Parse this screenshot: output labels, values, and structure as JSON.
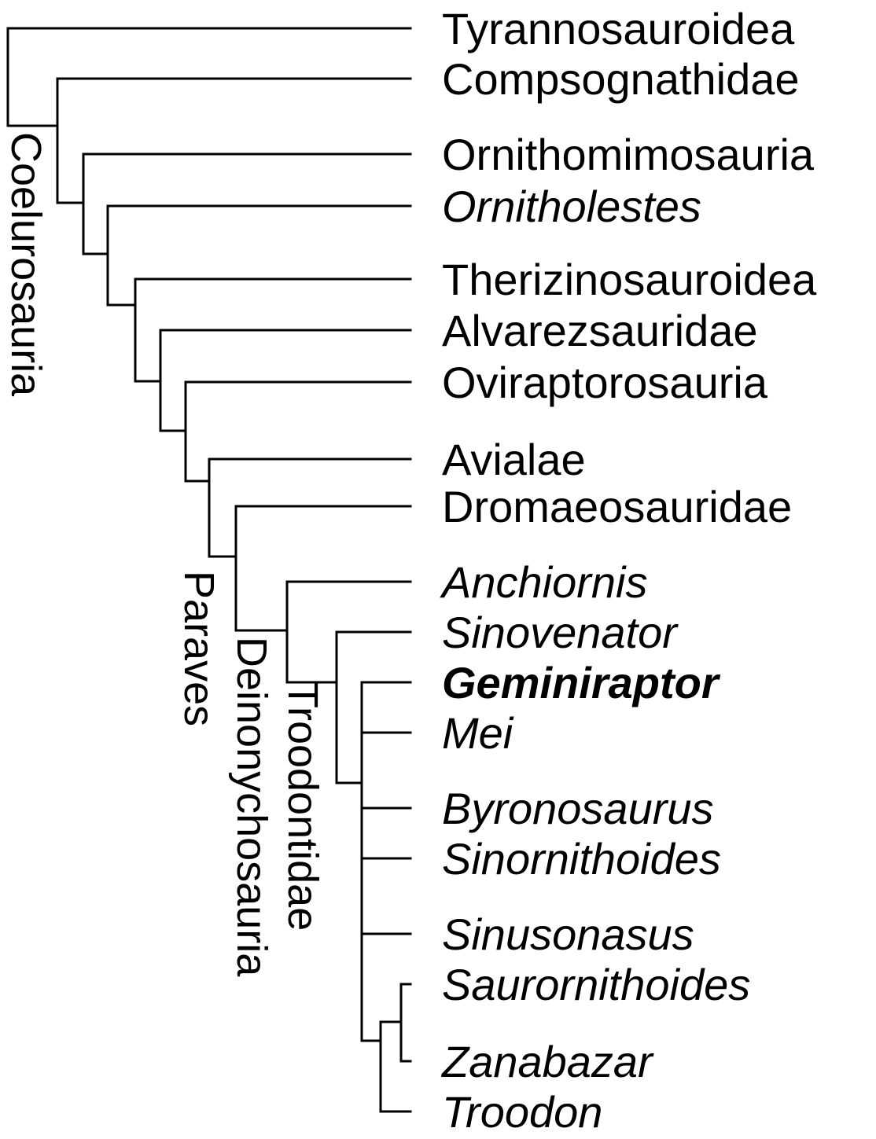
{
  "diagram": {
    "type": "cladogram",
    "taxa": [
      {
        "name": "Tyrannosauroidea",
        "italic": false,
        "bold": false
      },
      {
        "name": "Compsognathidae",
        "italic": false,
        "bold": false
      },
      {
        "name": "Ornithomimosauria",
        "italic": false,
        "bold": false
      },
      {
        "name": "Ornitholestes",
        "italic": true,
        "bold": false
      },
      {
        "name": "Therizinosauroidea",
        "italic": false,
        "bold": false
      },
      {
        "name": "Alvarezsauridae",
        "italic": false,
        "bold": false
      },
      {
        "name": "Oviraptorosauria",
        "italic": false,
        "bold": false
      },
      {
        "name": "Avialae",
        "italic": false,
        "bold": false
      },
      {
        "name": "Dromaeosauridae",
        "italic": false,
        "bold": false
      },
      {
        "name": "Anchiornis",
        "italic": true,
        "bold": false
      },
      {
        "name": "Sinovenator",
        "italic": true,
        "bold": false
      },
      {
        "name": "Geminiraptor",
        "italic": true,
        "bold": true
      },
      {
        "name": "Mei",
        "italic": true,
        "bold": false
      },
      {
        "name": "Byronosaurus",
        "italic": true,
        "bold": false
      },
      {
        "name": "Sinornithoides",
        "italic": true,
        "bold": false
      },
      {
        "name": "Sinusonasus",
        "italic": true,
        "bold": false
      },
      {
        "name": "Saurornithoides",
        "italic": true,
        "bold": false
      },
      {
        "name": "Zanabazar",
        "italic": true,
        "bold": false
      },
      {
        "name": "Troodon",
        "italic": true,
        "bold": false
      }
    ],
    "clades": [
      {
        "name": "Coelurosauria"
      },
      {
        "name": "Paraves"
      },
      {
        "name": "Deinonychosauria"
      },
      {
        "name": "Troodontidae"
      }
    ],
    "line_color": "#000000"
  }
}
